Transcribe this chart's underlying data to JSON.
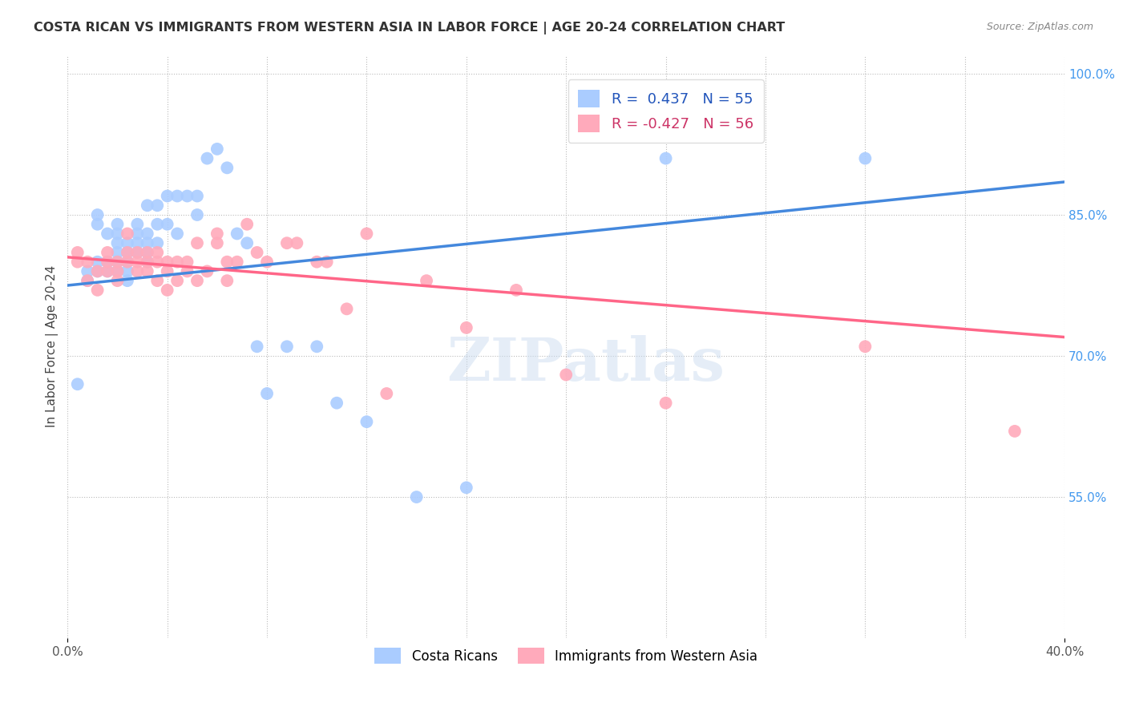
{
  "title": "COSTA RICAN VS IMMIGRANTS FROM WESTERN ASIA IN LABOR FORCE | AGE 20-24 CORRELATION CHART",
  "source": "Source: ZipAtlas.com",
  "ylabel": "In Labor Force | Age 20-24",
  "xlim": [
    0.0,
    0.1
  ],
  "ylim": [
    0.4,
    1.02
  ],
  "ytick_labels_right": [
    "100.0%",
    "85.0%",
    "70.0%",
    "55.0%"
  ],
  "ytick_vals_right": [
    1.0,
    0.85,
    0.7,
    0.55
  ],
  "blue_color": "#4488DD",
  "pink_color": "#FF6688",
  "blue_scatter_color": "#AACCFF",
  "pink_scatter_color": "#FFAABB",
  "watermark_text": "ZIPatlas",
  "blue_line_x0": 0.0,
  "blue_line_y0": 0.775,
  "blue_line_x1": 0.1,
  "blue_line_y1": 0.885,
  "pink_line_x0": 0.0,
  "pink_line_y0": 0.805,
  "pink_line_x1": 0.1,
  "pink_line_y1": 0.72,
  "blue_points_x": [
    0.001,
    0.002,
    0.002,
    0.003,
    0.003,
    0.003,
    0.003,
    0.004,
    0.004,
    0.004,
    0.005,
    0.005,
    0.005,
    0.005,
    0.005,
    0.005,
    0.006,
    0.006,
    0.006,
    0.006,
    0.006,
    0.007,
    0.007,
    0.007,
    0.007,
    0.008,
    0.008,
    0.008,
    0.008,
    0.008,
    0.009,
    0.009,
    0.009,
    0.01,
    0.01,
    0.011,
    0.011,
    0.012,
    0.013,
    0.013,
    0.014,
    0.015,
    0.016,
    0.017,
    0.018,
    0.019,
    0.02,
    0.022,
    0.025,
    0.027,
    0.03,
    0.035,
    0.04,
    0.06,
    0.08
  ],
  "blue_points_y": [
    0.67,
    0.78,
    0.79,
    0.79,
    0.8,
    0.84,
    0.85,
    0.79,
    0.8,
    0.83,
    0.79,
    0.8,
    0.81,
    0.82,
    0.83,
    0.84,
    0.78,
    0.79,
    0.8,
    0.81,
    0.82,
    0.81,
    0.82,
    0.83,
    0.84,
    0.8,
    0.81,
    0.82,
    0.83,
    0.86,
    0.82,
    0.84,
    0.86,
    0.84,
    0.87,
    0.83,
    0.87,
    0.87,
    0.85,
    0.87,
    0.91,
    0.92,
    0.9,
    0.83,
    0.82,
    0.71,
    0.66,
    0.71,
    0.71,
    0.65,
    0.63,
    0.55,
    0.56,
    0.91,
    0.91
  ],
  "pink_points_x": [
    0.001,
    0.001,
    0.002,
    0.002,
    0.003,
    0.003,
    0.004,
    0.004,
    0.004,
    0.005,
    0.005,
    0.005,
    0.006,
    0.006,
    0.006,
    0.007,
    0.007,
    0.007,
    0.008,
    0.008,
    0.008,
    0.009,
    0.009,
    0.009,
    0.01,
    0.01,
    0.01,
    0.011,
    0.011,
    0.012,
    0.012,
    0.013,
    0.013,
    0.014,
    0.015,
    0.015,
    0.016,
    0.016,
    0.017,
    0.018,
    0.019,
    0.02,
    0.022,
    0.023,
    0.025,
    0.026,
    0.028,
    0.03,
    0.032,
    0.036,
    0.04,
    0.045,
    0.05,
    0.06,
    0.08,
    0.095
  ],
  "pink_points_y": [
    0.8,
    0.81,
    0.78,
    0.8,
    0.77,
    0.79,
    0.79,
    0.8,
    0.81,
    0.78,
    0.79,
    0.8,
    0.8,
    0.81,
    0.83,
    0.79,
    0.8,
    0.81,
    0.79,
    0.8,
    0.81,
    0.78,
    0.8,
    0.81,
    0.77,
    0.79,
    0.8,
    0.78,
    0.8,
    0.79,
    0.8,
    0.78,
    0.82,
    0.79,
    0.82,
    0.83,
    0.78,
    0.8,
    0.8,
    0.84,
    0.81,
    0.8,
    0.82,
    0.82,
    0.8,
    0.8,
    0.75,
    0.83,
    0.66,
    0.78,
    0.73,
    0.77,
    0.68,
    0.65,
    0.71,
    0.62
  ],
  "legend_text1": "R =  0.437   N = 55",
  "legend_text2": "R = -0.427   N = 56",
  "legend_text_color1": "#2255BB",
  "legend_text_color2": "#CC3366",
  "bottom_label1": "Costa Ricans",
  "bottom_label2": "Immigrants from Western Asia"
}
